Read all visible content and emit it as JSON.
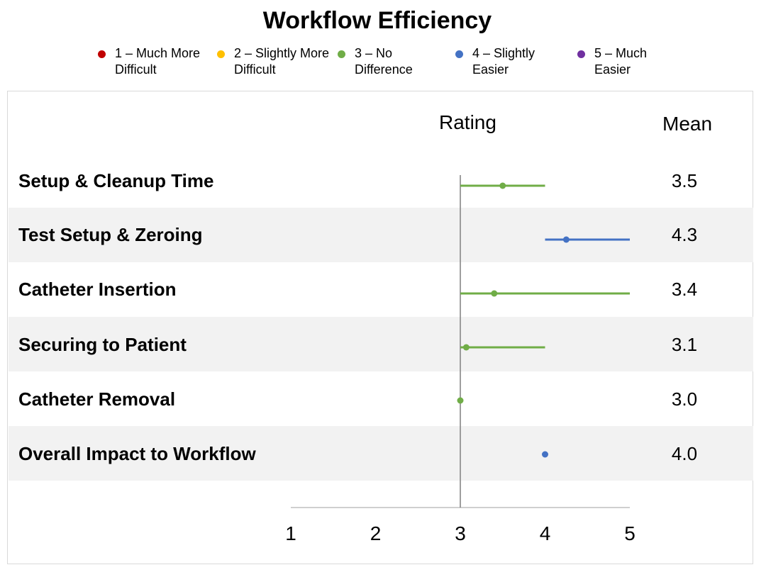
{
  "chart_data": {
    "type": "scatter",
    "title": "Workflow Efficiency",
    "column_headers": {
      "rating": "Rating",
      "mean": "Mean"
    },
    "legend": [
      {
        "label": "1 – Much More Difficult",
        "color": "#c00000"
      },
      {
        "label": "2 – Slightly More Difficult",
        "color": "#ffc000"
      },
      {
        "label": "3 – No Difference",
        "color": "#70ad47"
      },
      {
        "label": "4 – Slightly Easier",
        "color": "#4472c4"
      },
      {
        "label": "5 – Much Easier",
        "color": "#7030a0"
      }
    ],
    "categories": [
      "Setup & Cleanup Time",
      "Test Setup & Zeroing",
      "Catheter Insertion",
      "Securing to Patient",
      "Catheter Removal",
      "Overall Impact to Workflow"
    ],
    "mean": [
      3.5,
      4.25,
      3.4,
      3.07,
      3.0,
      4.0
    ],
    "mean_labels": [
      "3.5",
      "4.3",
      "3.4",
      "3.1",
      "3.0",
      "4.0"
    ],
    "range_low": [
      3,
      4,
      3,
      3,
      3,
      4
    ],
    "range_high": [
      4,
      5,
      5,
      4,
      3,
      4
    ],
    "point_colors": [
      "#70ad47",
      "#4472c4",
      "#70ad47",
      "#70ad47",
      "#70ad47",
      "#4472c4"
    ],
    "x_ticks": [
      "1",
      "2",
      "3",
      "4",
      "5"
    ],
    "xlim": [
      1,
      5
    ],
    "reference_line": 3
  }
}
